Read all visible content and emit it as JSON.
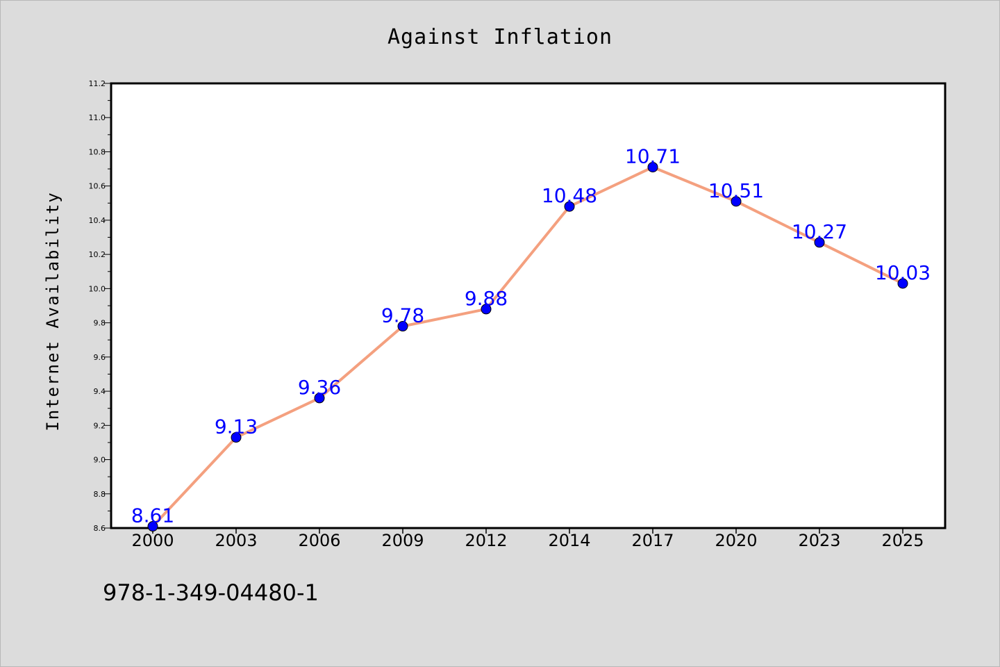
{
  "chart_data": {
    "type": "line",
    "title": "Against Inflation",
    "xlabel": "",
    "ylabel": "Internet Availability",
    "categories": [
      "2000",
      "2003",
      "2006",
      "2009",
      "2012",
      "2014",
      "2017",
      "2020",
      "2023",
      "2025"
    ],
    "series": [
      {
        "values": [
          8.61,
          9.13,
          9.36,
          9.78,
          9.88,
          10.48,
          10.71,
          10.51,
          10.27,
          10.03
        ],
        "data_labels": [
          "8.61",
          "9.13",
          "9.36",
          "9.78",
          "9.88",
          "10.48",
          "10.71",
          "10.51",
          "10.27",
          "10.03"
        ],
        "line_color": "#f4a07f",
        "marker_color": "#0000ff"
      }
    ],
    "ylim": [
      8.6,
      11.2
    ],
    "yticks": [
      "8.6",
      "8.8",
      "9.0",
      "9.2",
      "9.4",
      "9.6",
      "9.8",
      "10.0",
      "10.2",
      "10.4",
      "10.6",
      "10.8",
      "11.0",
      "11.2"
    ],
    "grid": false,
    "legend": "none"
  },
  "footer": {
    "text": "978-1-349-04480-1"
  },
  "colors": {
    "page_background": "#dcdcdc",
    "plot_background": "#ffffff",
    "axis": "#000000"
  }
}
